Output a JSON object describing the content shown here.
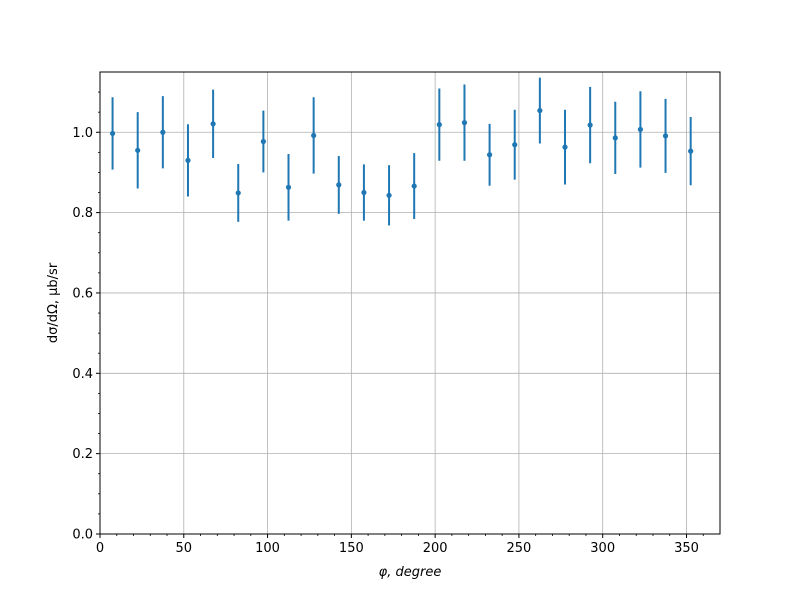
{
  "chart_data": {
    "type": "scatter",
    "title": "",
    "xlabel": "φ, degree",
    "ylabel": "dσ/dΩ, μb/sr",
    "xlim": [
      0,
      370
    ],
    "ylim": [
      0,
      1.15
    ],
    "grid": true,
    "x_ticks": [
      "0",
      "50",
      "100",
      "150",
      "200",
      "250",
      "300",
      "350"
    ],
    "y_ticks": [
      "0.0",
      "0.2",
      "0.4",
      "0.6",
      "0.8",
      "1.0"
    ],
    "marker_color": "#1f77b4",
    "series": [
      {
        "x": [
          7.5,
          22.5,
          37.5,
          52.5,
          67.5,
          82.5,
          97.5,
          112.5,
          127.5,
          142.5,
          157.5,
          172.5,
          187.5,
          202.5,
          217.5,
          232.5,
          247.5,
          262.5,
          277.5,
          292.5,
          307.5,
          322.5,
          337.5,
          352.5
        ],
        "y": [
          0.997,
          0.955,
          1.0,
          0.93,
          1.021,
          0.849,
          0.977,
          0.863,
          0.992,
          0.869,
          0.85,
          0.843,
          0.866,
          1.019,
          1.024,
          0.944,
          0.969,
          1.054,
          0.963,
          1.018,
          0.986,
          1.007,
          0.991,
          0.953
        ],
        "yerr": [
          0.09,
          0.095,
          0.09,
          0.09,
          0.085,
          0.072,
          0.077,
          0.083,
          0.095,
          0.072,
          0.07,
          0.075,
          0.082,
          0.09,
          0.095,
          0.077,
          0.087,
          0.082,
          0.093,
          0.095,
          0.09,
          0.095,
          0.092,
          0.085
        ]
      }
    ]
  }
}
